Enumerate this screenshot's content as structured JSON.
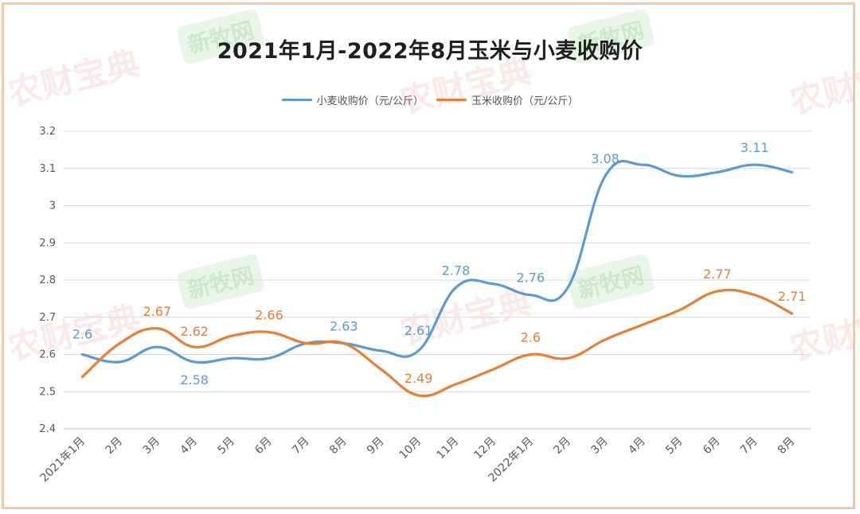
{
  "title": "2021年1月-2022年8月玉米与小麦收购价",
  "watermark": {
    "main": "农财宝典",
    "badge": "新牧网"
  },
  "colors": {
    "wheat": "#5b9bd5",
    "corn": "#ed7d31",
    "grid": "#d9d9d9",
    "axis_text": "#595959",
    "border": "#f3c9a6"
  },
  "chart_data": {
    "type": "line",
    "title": "2021年1月-2022年8月玉米与小麦收购价",
    "categories": [
      "2021年1月",
      "2月",
      "3月",
      "4月",
      "5月",
      "6月",
      "7月",
      "8月",
      "9月",
      "10月",
      "11月",
      "12月",
      "2022年1月",
      "2月",
      "3月",
      "4月",
      "5月",
      "6月",
      "7月",
      "8月"
    ],
    "series": [
      {
        "name": "小麦收购价（元/公斤）",
        "color": "#5b9bd5",
        "values": [
          2.6,
          2.58,
          2.62,
          2.58,
          2.59,
          2.59,
          2.63,
          2.63,
          2.61,
          2.61,
          2.78,
          2.79,
          2.76,
          2.78,
          3.08,
          3.11,
          3.08,
          3.09,
          3.11,
          3.09
        ],
        "labels": [
          "2.6",
          null,
          null,
          "2.58",
          null,
          null,
          null,
          "2.63",
          null,
          "2.61",
          "2.78",
          null,
          "2.76",
          null,
          "3.08",
          null,
          null,
          null,
          "3.11",
          null
        ]
      },
      {
        "name": "玉米收购价（元/公斤）",
        "color": "#ed7d31",
        "values": [
          2.54,
          2.63,
          2.67,
          2.62,
          2.65,
          2.66,
          2.63,
          2.63,
          2.56,
          2.49,
          2.52,
          2.56,
          2.6,
          2.59,
          2.64,
          2.68,
          2.72,
          2.77,
          2.76,
          2.71
        ],
        "labels": [
          null,
          null,
          "2.67",
          "2.62",
          null,
          "2.66",
          null,
          null,
          null,
          "2.49",
          null,
          null,
          "2.6",
          null,
          null,
          null,
          null,
          "2.77",
          null,
          "2.71"
        ]
      }
    ],
    "ylim": [
      2.4,
      3.2
    ],
    "yticks": [
      "2.4",
      "2.5",
      "2.6",
      "2.7",
      "2.8",
      "2.9",
      "3",
      "3.1",
      "3.2"
    ],
    "grid": true,
    "legend_position": "top"
  }
}
